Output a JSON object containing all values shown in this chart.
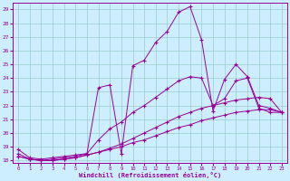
{
  "xlabel": "Windchill (Refroidissement éolien,°C)",
  "xlim": [
    -0.5,
    23.5
  ],
  "ylim": [
    17.8,
    29.5
  ],
  "yticks": [
    18,
    19,
    20,
    21,
    22,
    23,
    24,
    25,
    26,
    27,
    28,
    29
  ],
  "xticks": [
    0,
    1,
    2,
    3,
    4,
    5,
    6,
    7,
    8,
    9,
    10,
    11,
    12,
    13,
    14,
    15,
    16,
    17,
    18,
    19,
    20,
    21,
    22,
    23
  ],
  "line_color": "#990099",
  "bg_color": "#cceeff",
  "grid_color": "#99cccc",
  "curves": [
    {
      "x": [
        0,
        1,
        2,
        3,
        4,
        5,
        6,
        7,
        8,
        9,
        10,
        11,
        12,
        13,
        14,
        15,
        16,
        17,
        18,
        19,
        20,
        21,
        22,
        23
      ],
      "y": [
        18.8,
        18.2,
        18.1,
        18.2,
        18.3,
        18.4,
        18.5,
        23.3,
        23.5,
        18.5,
        24.9,
        25.3,
        26.6,
        27.4,
        28.8,
        29.2,
        26.8,
        21.6,
        23.9,
        25.0,
        24.1,
        22.0,
        21.8,
        21.5
      ]
    },
    {
      "x": [
        0,
        1,
        2,
        3,
        4,
        5,
        6,
        7,
        8,
        9,
        10,
        11,
        12,
        13,
        14,
        15,
        16,
        17,
        18,
        19,
        20,
        21,
        22,
        23
      ],
      "y": [
        18.5,
        18.1,
        18.0,
        18.1,
        18.2,
        18.3,
        18.5,
        19.5,
        20.3,
        20.8,
        21.5,
        22.0,
        22.6,
        23.2,
        23.8,
        24.1,
        24.0,
        22.0,
        22.5,
        23.8,
        24.0,
        21.8,
        21.5,
        21.5
      ]
    },
    {
      "x": [
        0,
        1,
        2,
        3,
        4,
        5,
        6,
        7,
        8,
        9,
        10,
        11,
        12,
        13,
        14,
        15,
        16,
        17,
        18,
        19,
        20,
        21,
        22,
        23
      ],
      "y": [
        18.3,
        18.1,
        18.0,
        18.0,
        18.1,
        18.2,
        18.4,
        18.6,
        18.9,
        19.2,
        19.6,
        20.0,
        20.4,
        20.8,
        21.2,
        21.5,
        21.8,
        22.0,
        22.2,
        22.4,
        22.5,
        22.6,
        22.5,
        21.5
      ]
    },
    {
      "x": [
        0,
        1,
        2,
        3,
        4,
        5,
        6,
        7,
        8,
        9,
        10,
        11,
        12,
        13,
        14,
        15,
        16,
        17,
        18,
        19,
        20,
        21,
        22,
        23
      ],
      "y": [
        18.3,
        18.1,
        18.0,
        18.0,
        18.1,
        18.2,
        18.4,
        18.6,
        18.8,
        19.0,
        19.3,
        19.5,
        19.8,
        20.1,
        20.4,
        20.6,
        20.9,
        21.1,
        21.3,
        21.5,
        21.6,
        21.7,
        21.7,
        21.5
      ]
    }
  ]
}
